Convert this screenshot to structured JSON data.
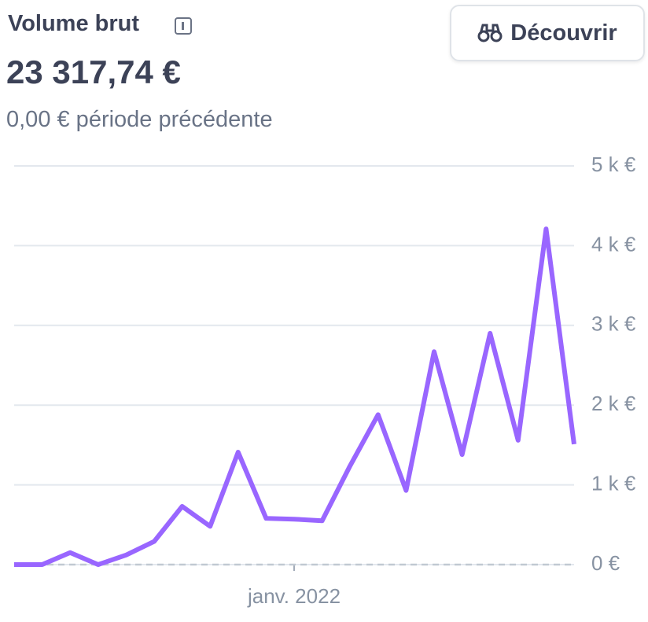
{
  "header": {
    "title": "Volume brut",
    "amount": "23 317,74 €",
    "comparison": "0,00 € période précédente",
    "button": "Découvrir"
  },
  "chart_data": {
    "type": "line",
    "categories": [
      null,
      null,
      null,
      null,
      null,
      null,
      null,
      null,
      null,
      null,
      "janv. 2022",
      null,
      null,
      null,
      null,
      null,
      null,
      null,
      null,
      null,
      null
    ],
    "series": [
      {
        "color": "#9966ff",
        "values": [
          0,
          0,
          150,
          0,
          120,
          290,
          730,
          480,
          1410,
          580,
          570,
          550,
          1240,
          1880,
          930,
          2670,
          1380,
          2900,
          1560,
          4210,
          1510
        ]
      },
      {
        "color": "#c1c9d2",
        "dashed": true,
        "values": [
          0,
          0,
          0,
          0,
          0,
          0,
          0,
          0,
          0,
          0,
          0,
          0,
          0,
          0,
          0,
          0,
          0,
          0,
          0,
          0,
          0
        ]
      }
    ],
    "ylim": [
      0,
      5000
    ],
    "yticks": [
      {
        "value": 0,
        "label": "0 €"
      },
      {
        "value": 1000,
        "label": "1 k €"
      },
      {
        "value": 2000,
        "label": "2 k €"
      },
      {
        "value": 3000,
        "label": "3 k €"
      },
      {
        "value": 4000,
        "label": "4 k €"
      },
      {
        "value": 5000,
        "label": "5 k €"
      }
    ],
    "grid": true
  }
}
